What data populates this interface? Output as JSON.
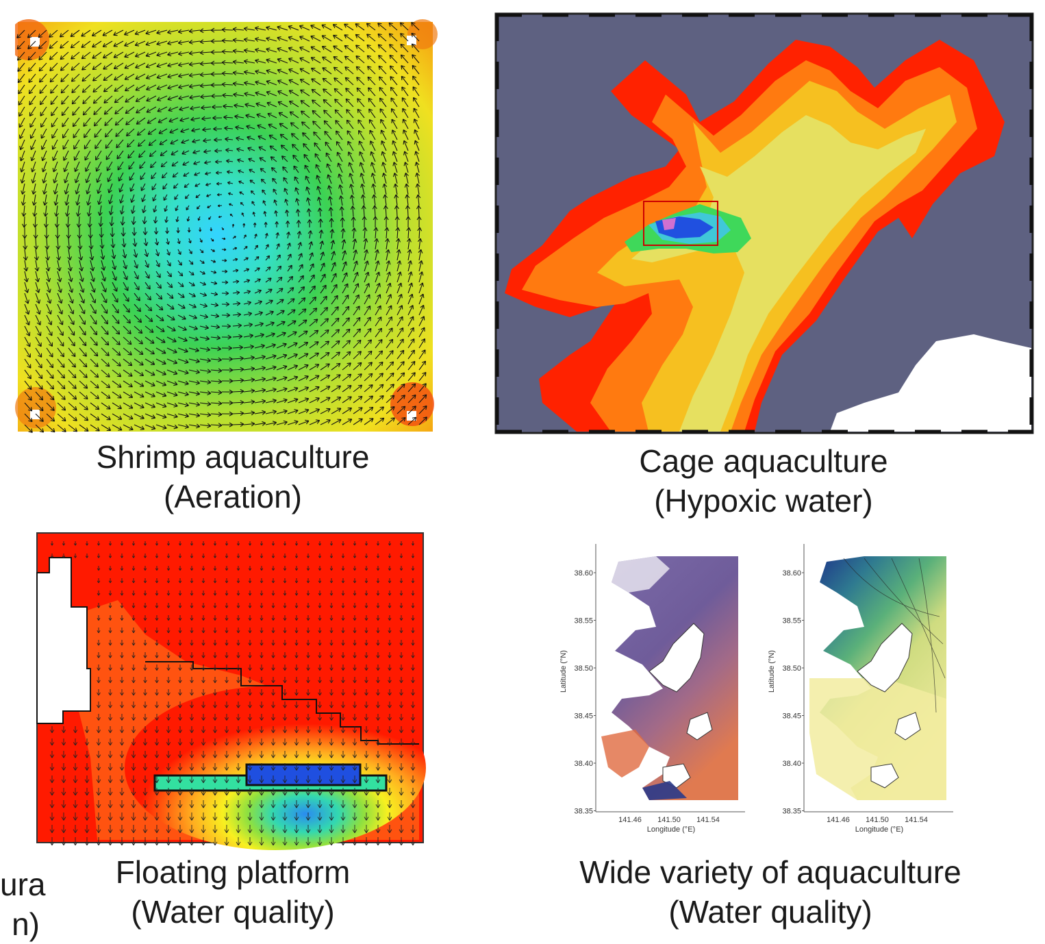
{
  "panels": {
    "shrimp": {
      "title": "Shrimp aquaculture",
      "subtitle": "(Aeration)"
    },
    "cage": {
      "title": "Cage aquaculture",
      "subtitle": "(Hypoxic water)"
    },
    "floating": {
      "title": "Floating platform",
      "subtitle": "(Water quality)"
    },
    "variety": {
      "title": "Wide variety of aquaculture",
      "subtitle": "(Water quality)"
    }
  },
  "cut_off_left": {
    "line1": "ura",
    "line2": "n)"
  },
  "maps": {
    "left": {
      "ylabel": "Latitude (°N)",
      "xlabel": "Longitude (°E)",
      "yticks": [
        "38.60",
        "38.55",
        "38.50",
        "38.45",
        "38.40",
        "38.35"
      ],
      "xticks": [
        "141.46",
        "141.50",
        "141.54"
      ]
    },
    "right": {
      "ylabel": "Latitude (°N)",
      "xlabel": "Longitude (°E)",
      "yticks": [
        "38.60",
        "38.55",
        "38.50",
        "38.45",
        "38.40",
        "38.35"
      ],
      "xticks": [
        "141.46",
        "141.50",
        "141.54"
      ]
    }
  },
  "colors": {
    "land": "#5e6181",
    "hot": "#ff1a00",
    "cool": "#1f6fe0",
    "accent_box": "#cc0000"
  }
}
